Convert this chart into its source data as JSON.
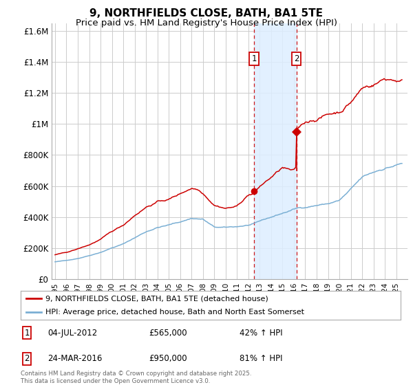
{
  "title": "9, NORTHFIELDS CLOSE, BATH, BA1 5TE",
  "subtitle": "Price paid vs. HM Land Registry's House Price Index (HPI)",
  "ylim": [
    0,
    1650000
  ],
  "yticks": [
    0,
    200000,
    400000,
    600000,
    800000,
    1000000,
    1200000,
    1400000,
    1600000
  ],
  "ytick_labels": [
    "£0",
    "£200K",
    "£400K",
    "£600K",
    "£800K",
    "£1M",
    "£1.2M",
    "£1.4M",
    "£1.6M"
  ],
  "sale1_date": 2012.5,
  "sale1_price": 565000,
  "sale2_date": 2016.23,
  "sale2_price": 950000,
  "highlight_color": "#ddeeff",
  "line1_color": "#cc0000",
  "line2_color": "#7aafd4",
  "grid_color": "#cccccc",
  "background_color": "#ffffff",
  "legend1_label": "9, NORTHFIELDS CLOSE, BATH, BA1 5TE (detached house)",
  "legend2_label": "HPI: Average price, detached house, Bath and North East Somerset",
  "sale1_annotation": "04-JUL-2012",
  "sale1_price_str": "£565,000",
  "sale1_pct": "42% ↑ HPI",
  "sale2_annotation": "24-MAR-2016",
  "sale2_price_str": "£950,000",
  "sale2_pct": "81% ↑ HPI",
  "footer": "Contains HM Land Registry data © Crown copyright and database right 2025.\nThis data is licensed under the Open Government Licence v3.0.",
  "title_fontsize": 11,
  "subtitle_fontsize": 9.5,
  "tick_fontsize": 8.5
}
